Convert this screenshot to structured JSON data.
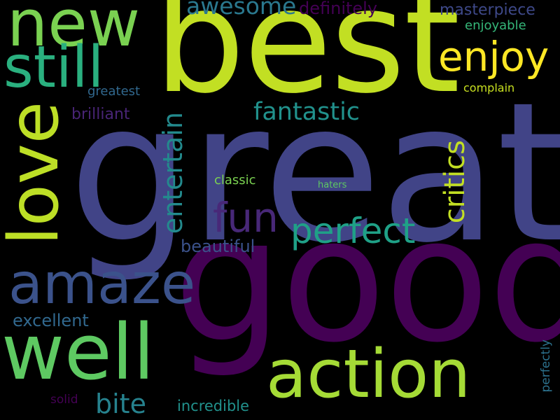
{
  "background": "#000000",
  "words": [
    {
      "key": "great",
      "text": "great",
      "color": "#414487"
    },
    {
      "key": "good",
      "text": "good",
      "color": "#440154"
    },
    {
      "key": "best",
      "text": "best",
      "color": "#c2df23"
    },
    {
      "key": "new",
      "text": "new",
      "color": "#7ad151"
    },
    {
      "key": "still",
      "text": "still",
      "color": "#2ab07f"
    },
    {
      "key": "love",
      "text": "love",
      "color": "#bddf26"
    },
    {
      "key": "amaze",
      "text": "amaze",
      "color": "#3b528b"
    },
    {
      "key": "well",
      "text": "well",
      "color": "#5ec962"
    },
    {
      "key": "action",
      "text": "action",
      "color": "#a5db36"
    },
    {
      "key": "enjoy",
      "text": "enjoy",
      "color": "#fde725"
    },
    {
      "key": "fun",
      "text": "fun",
      "color": "#482878"
    },
    {
      "key": "perfect",
      "text": "perfect",
      "color": "#1fa187"
    },
    {
      "key": "fantastic",
      "text": "fantastic",
      "color": "#21918c"
    },
    {
      "key": "awesome",
      "text": "awesome",
      "color": "#2a788e"
    },
    {
      "key": "definitely",
      "text": "definitely",
      "color": "#440154"
    },
    {
      "key": "masterpiece",
      "text": "masterpiece",
      "color": "#3e4989"
    },
    {
      "key": "enjoyable",
      "text": "enjoyable",
      "color": "#35b779"
    },
    {
      "key": "complain",
      "text": "complain",
      "color": "#c8e020"
    },
    {
      "key": "greatest",
      "text": "greatest",
      "color": "#31688e"
    },
    {
      "key": "brilliant",
      "text": "brilliant",
      "color": "#482475"
    },
    {
      "key": "classic",
      "text": "classic",
      "color": "#7ad151"
    },
    {
      "key": "haters",
      "text": "haters",
      "color": "#5ec962"
    },
    {
      "key": "beautiful",
      "text": "beautiful",
      "color": "#3b528b"
    },
    {
      "key": "excellent",
      "text": "excellent",
      "color": "#31688e"
    },
    {
      "key": "bite",
      "text": "bite",
      "color": "#26828e"
    },
    {
      "key": "solid",
      "text": "solid",
      "color": "#440154"
    },
    {
      "key": "incredible",
      "text": "incredible",
      "color": "#21918c"
    },
    {
      "key": "entertain",
      "text": "entertain",
      "color": "#238a8d",
      "vertical": true
    },
    {
      "key": "critics",
      "text": "critics",
      "color": "#c2df23",
      "vertical": true
    },
    {
      "key": "perfectly",
      "text": "perfectly",
      "color": "#2c728e",
      "vertical": true
    }
  ]
}
